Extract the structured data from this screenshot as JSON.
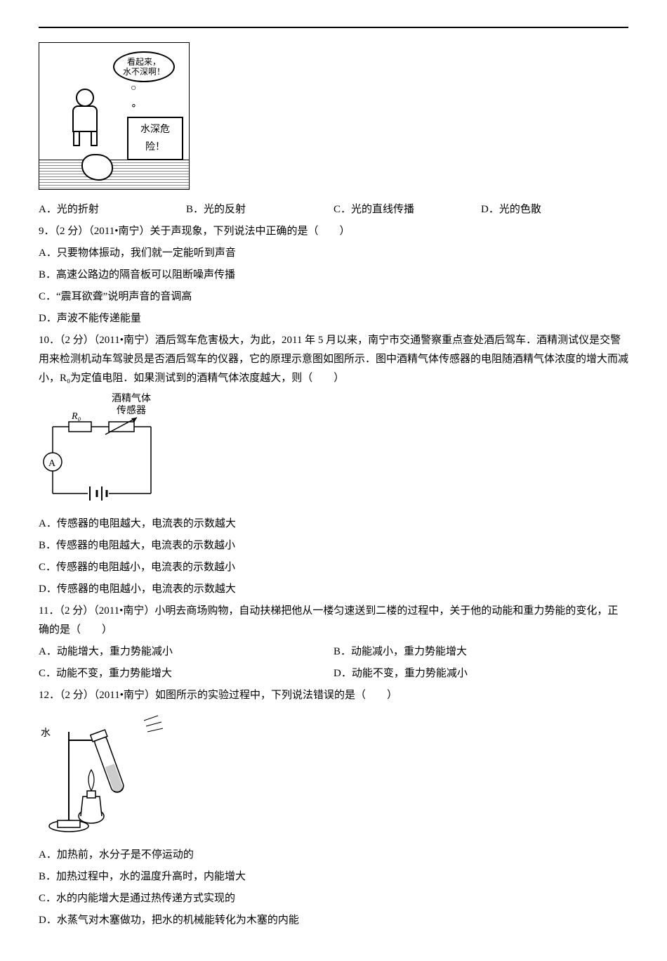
{
  "figure8": {
    "bubble_text": "看起来，\n水不深啊！",
    "sign_text": "水深危险！"
  },
  "q8_options": {
    "a": "A．光的折射",
    "b": "B．光的反射",
    "c": "C．光的直线传播",
    "d": "D．光的色散"
  },
  "q9": {
    "stem": "9．（2 分）（2011•南宁）关于声现象，下列说法中正确的是（　　）",
    "a": "A．只要物体振动，我们就一定能听到声音",
    "b": "B．高速公路边的隔音板可以阻断噪声传播",
    "c": "C．“震耳欲聋”说明声音的音调高",
    "d": "D．声波不能传递能量"
  },
  "q10": {
    "stem": "10．（2 分）（2011•南宁）酒后驾车危害极大，为此，2011 年 5 月以来，南宁市交通警察重点查处酒后驾车．酒精测试仪是交警用来检测机动车驾驶员是否酒后驾车的仪器，它的原理示意图如图所示．图中酒精气体传感器的电阻随酒精气体浓度的增大而减小，R₀为定值电阻．如果测试到的酒精气体浓度越大，则（　　）",
    "sensor_label": "酒精气体\n传感器",
    "r0_label": "R₀",
    "ammeter_label": "A",
    "a": "A．传感器的电阻越大，电流表的示数越大",
    "b": "B．传感器的电阻越大，电流表的示数越小",
    "c": "C．传感器的电阻越小，电流表的示数越小",
    "d": "D．传感器的电阻越小，电流表的示数越大"
  },
  "q11": {
    "stem": "11．（2 分）（2011•南宁）小明去商场购物，自动扶梯把他从一楼匀速送到二楼的过程中，关于他的动能和重力势能的变化，正确的是（　　）",
    "a": "A．动能增大，重力势能减小",
    "b": "B．动能减小，重力势能增大",
    "c": "C．动能不变，重力势能增大",
    "d": "D．动能不变，重力势能减小"
  },
  "q12": {
    "stem": "12．（2 分）（2011•南宁）如图所示的实验过程中，下列说法错误的是（　　）",
    "water_label": "水",
    "a": "A．加热前，水分子是不停运动的",
    "b": "B．加热过程中，水的温度升高时，内能增大",
    "c": "C．水的内能增大是通过热传递方式实现的",
    "d": "D．水蒸气对木塞做功，把水的机械能转化为木塞的内能"
  }
}
